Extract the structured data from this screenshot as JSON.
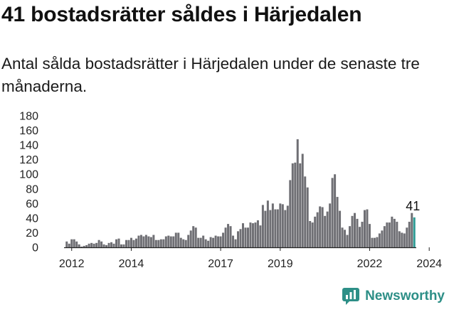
{
  "title": "41 bostadsrätter såldes i Härjedalen",
  "subtitle": "Antal sålda bostadsrätter i Härjedalen under de senaste tre månaderna.",
  "brand": {
    "name": "Newsworthy",
    "icon": "newsworthy-logo-icon"
  },
  "colors": {
    "bar": "#6f6f74",
    "highlight": "#2f9c95",
    "text": "#111111"
  },
  "chart_data": {
    "type": "bar",
    "title": "41 bostadsrätter såldes i Härjedalen",
    "xlabel": "",
    "ylabel": "",
    "ylim": [
      0,
      180
    ],
    "y_ticks": [
      0,
      20,
      40,
      60,
      80,
      100,
      120,
      140,
      160,
      180
    ],
    "x_tick_labels": [
      "2012",
      "2014",
      "2017",
      "2019",
      "2022",
      "2024"
    ],
    "x_start": "2011-11",
    "frequency": "monthly",
    "annotation": {
      "text": "41"
    },
    "highlight_last": true,
    "values": [
      8,
      5,
      11,
      11,
      8,
      4,
      1,
      2,
      3,
      5,
      6,
      5,
      6,
      10,
      8,
      4,
      3,
      6,
      7,
      5,
      11,
      12,
      4,
      4,
      10,
      10,
      13,
      10,
      12,
      16,
      17,
      15,
      17,
      15,
      14,
      17,
      10,
      10,
      11,
      11,
      15,
      16,
      15,
      15,
      20,
      20,
      13,
      11,
      10,
      17,
      23,
      29,
      27,
      13,
      13,
      16,
      11,
      9,
      14,
      13,
      16,
      15,
      15,
      20,
      27,
      32,
      29,
      16,
      11,
      22,
      25,
      33,
      27,
      27,
      34,
      33,
      34,
      37,
      30,
      58,
      50,
      64,
      51,
      60,
      52,
      52,
      60,
      59,
      51,
      57,
      92,
      115,
      116,
      148,
      115,
      128,
      97,
      82,
      36,
      34,
      42,
      48,
      56,
      55,
      43,
      49,
      60,
      95,
      100,
      69,
      50,
      27,
      24,
      17,
      29,
      43,
      47,
      39,
      28,
      35,
      51,
      52,
      32,
      13,
      13,
      14,
      19,
      23,
      29,
      34,
      34,
      42,
      39,
      35,
      22,
      20,
      19,
      27,
      35,
      47,
      41
    ]
  }
}
